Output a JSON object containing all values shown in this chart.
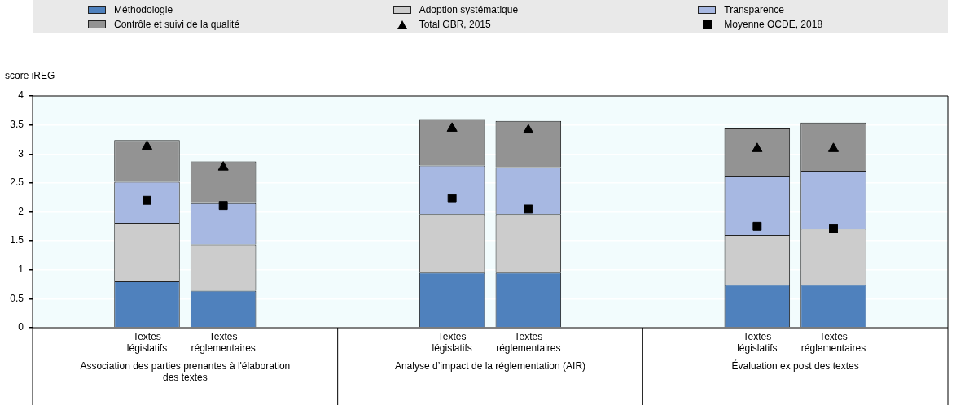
{
  "chart_data": {
    "type": "bar",
    "stacked": true,
    "ylabel": "score iREG",
    "categories": [
      null,
      "Textes législatifs",
      "Textes réglementaires",
      null,
      null,
      "Textes législatifs",
      "Textes réglementaires",
      null,
      null,
      "Textes législatifs",
      "Textes réglementaires",
      null
    ],
    "series": [
      {
        "name": "Méthodologie",
        "color": "#4f81bd",
        "values": [
          null,
          0.8,
          0.64,
          null,
          null,
          0.95,
          0.95,
          null,
          null,
          0.74,
          0.74,
          null
        ]
      },
      {
        "name": "Adoption systématique",
        "color": "#cccccc",
        "values": [
          null,
          1.01,
          0.8,
          null,
          null,
          1.01,
          1.01,
          null,
          null,
          0.86,
          0.97,
          null
        ]
      },
      {
        "name": "Transparence",
        "color": "#a7b8e2",
        "values": [
          null,
          0.71,
          0.71,
          null,
          null,
          0.84,
          0.81,
          null,
          null,
          1.01,
          1.0,
          null
        ]
      },
      {
        "name": "Contrôle et suivi de la qualité",
        "color": "#939393",
        "values": [
          null,
          0.72,
          0.72,
          null,
          null,
          0.8,
          0.8,
          null,
          null,
          0.83,
          0.83,
          null
        ]
      },
      {
        "name": "Total GBR, 2015",
        "type": "scatter",
        "marker": "triangle",
        "color": "#000000",
        "values": [
          null,
          3.13,
          2.77,
          null,
          null,
          3.44,
          3.41,
          null,
          null,
          3.09,
          3.09,
          null
        ]
      },
      {
        "name": "Moyenne OCDE, 2018",
        "type": "scatter",
        "marker": "square",
        "color": "#000000",
        "values": [
          null,
          2.2,
          2.11,
          null,
          null,
          2.23,
          2.05,
          null,
          null,
          1.75,
          1.71,
          null
        ]
      }
    ],
    "ylim": [
      0,
      4
    ],
    "yticks": [
      0,
      0.5,
      1,
      1.5,
      2,
      2.5,
      3,
      3.5,
      4
    ],
    "grid": "y",
    "legend": "top",
    "annotations": [
      "Association des parties prenantes à l'élaboration des textes",
      "Analyse d’impact de la réglementation (AIR)",
      "Évaluation ex post des textes"
    ]
  }
}
